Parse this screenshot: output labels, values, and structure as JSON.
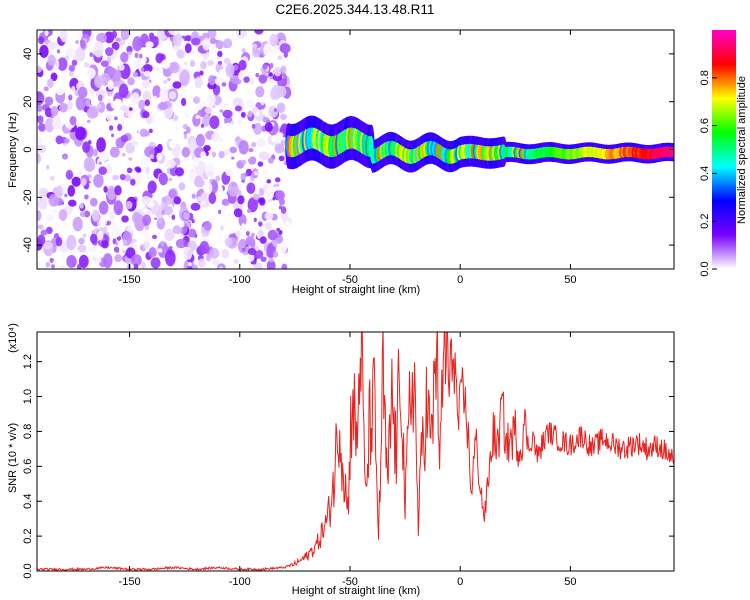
{
  "title": "C2E6.2025.344.13.48.R11",
  "chart_data": [
    {
      "type": "heatmap",
      "xlabel": "Height of straight line (km)",
      "ylabel": "Frequency (Hz)",
      "xlim": [
        -192,
        97
      ],
      "ylim": [
        -50,
        50
      ],
      "x_ticks": [
        "-150",
        "-100",
        "-50",
        "0",
        "50"
      ],
      "y_ticks": [
        "-40",
        "-20",
        "0",
        "20",
        "40"
      ],
      "colorbar": {
        "label": "Normalized spectral amplitude",
        "range": [
          0,
          1
        ],
        "ticks": [
          "0.0",
          "0.2",
          "0.4",
          "0.6",
          "0.8"
        ],
        "colors": [
          "#ffffff",
          "#7700ff",
          "#0000ff",
          "#00ffff",
          "#00ff00",
          "#ffff00",
          "#ff0000",
          "#ff00cc"
        ]
      },
      "features": [
        {
          "x_range": [
            -192,
            -78
          ],
          "y_range": [
            -50,
            50
          ],
          "amplitude": 0.15
        },
        {
          "x_range": [
            -78,
            97
          ],
          "center_hz": 0,
          "amplitude": 0.95
        }
      ]
    },
    {
      "type": "line",
      "xlabel": "Height of straight line (km)",
      "ylabel": "SNR (10 * v/v)",
      "ylabel_multiplier": "(x10⁴)",
      "xlim": [
        -192,
        97
      ],
      "ylim": [
        0,
        1.37
      ],
      "x_ticks": [
        "-150",
        "-100",
        "-50",
        "0",
        "50"
      ],
      "y_ticks": [
        "0.0",
        "0.2",
        "0.4",
        "0.6",
        "0.8",
        "1.0",
        "1.2"
      ],
      "series_color": "#e8231f",
      "series": [
        {
          "x": [
            -192,
            -180,
            -170,
            -160,
            -150,
            -140,
            -130,
            -120,
            -110,
            -100,
            -90,
            -80,
            -75,
            -70,
            -65,
            -60,
            -57,
            -55,
            -53,
            -51,
            -49,
            -47,
            -45,
            -43,
            -41,
            -39,
            -37,
            -35,
            -33,
            -31,
            -29,
            -27,
            -25,
            -23,
            -21,
            -19,
            -17,
            -15,
            -13,
            -11,
            -9,
            -7,
            -5,
            -3,
            -1,
            1,
            3,
            5,
            7,
            9,
            11,
            13,
            15,
            17,
            19,
            21,
            23,
            25,
            27,
            29,
            31,
            33,
            35,
            37,
            40,
            45,
            50,
            55,
            60,
            65,
            70,
            75,
            80,
            85,
            90,
            95,
            97
          ],
          "y": [
            0.01,
            0.01,
            0.01,
            0.02,
            0.01,
            0.01,
            0.02,
            0.01,
            0.02,
            0.01,
            0.01,
            0.02,
            0.04,
            0.08,
            0.15,
            0.3,
            0.55,
            0.9,
            0.6,
            0.35,
            1.05,
            0.7,
            1.37,
            0.4,
            0.85,
            0.95,
            0.2,
            1.1,
            0.45,
            1.0,
            0.65,
            1.25,
            0.35,
            0.9,
            1.2,
            0.25,
            0.8,
            0.95,
            0.7,
            1.3,
            0.65,
            1.37,
            1.05,
            1.3,
            0.85,
            1.0,
            0.9,
            0.45,
            0.75,
            0.5,
            0.3,
            0.55,
            0.8,
            0.7,
            0.95,
            0.72,
            0.75,
            0.8,
            0.68,
            0.85,
            0.7,
            0.78,
            0.65,
            0.72,
            0.8,
            0.75,
            0.72,
            0.78,
            0.7,
            0.76,
            0.72,
            0.7,
            0.74,
            0.7,
            0.72,
            0.66,
            0.62
          ]
        }
      ]
    }
  ]
}
